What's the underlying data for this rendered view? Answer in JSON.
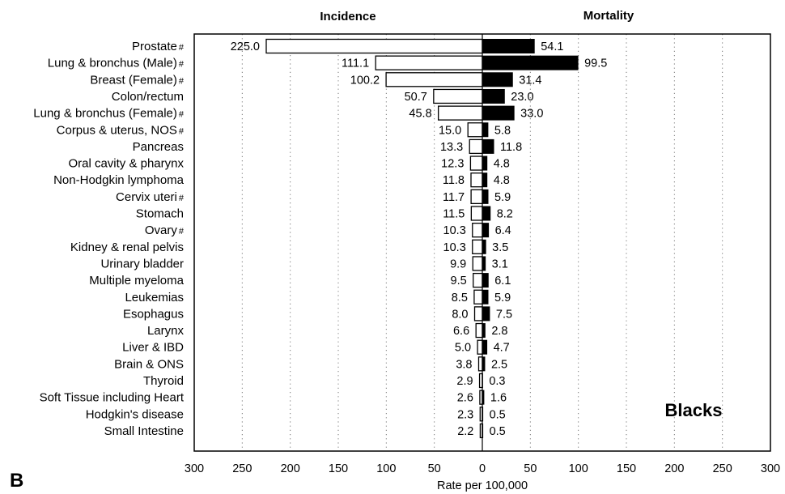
{
  "chart_data": {
    "type": "bar",
    "orientation": "horizontal-diverging",
    "headers": {
      "left": "Incidence",
      "right": "Mortality"
    },
    "panel_label": "Blacks",
    "figure_letter": "B",
    "xlabel": "Rate per 100,000",
    "xlim": [
      -300,
      300
    ],
    "tick_labels": [
      "300",
      "250",
      "200",
      "150",
      "100",
      "50",
      "0",
      "50",
      "100",
      "150",
      "200",
      "250",
      "300"
    ],
    "categories": [
      {
        "name": "Prostate",
        "hash": "#"
      },
      {
        "name": "Lung & bronchus (Male)",
        "hash": "#"
      },
      {
        "name": "Breast (Female)",
        "hash": "#"
      },
      {
        "name": "Colon/rectum",
        "hash": ""
      },
      {
        "name": "Lung & bronchus (Female)",
        "hash": "#"
      },
      {
        "name": "Corpus & uterus, NOS",
        "hash": "#"
      },
      {
        "name": "Pancreas",
        "hash": ""
      },
      {
        "name": "Oral cavity & pharynx",
        "hash": ""
      },
      {
        "name": "Non-Hodgkin lymphoma",
        "hash": ""
      },
      {
        "name": "Cervix uteri",
        "hash": "#"
      },
      {
        "name": "Stomach",
        "hash": ""
      },
      {
        "name": "Ovary",
        "hash": "#"
      },
      {
        "name": "Kidney & renal pelvis",
        "hash": ""
      },
      {
        "name": "Urinary bladder",
        "hash": ""
      },
      {
        "name": "Multiple myeloma",
        "hash": ""
      },
      {
        "name": "Leukemias",
        "hash": ""
      },
      {
        "name": "Esophagus",
        "hash": ""
      },
      {
        "name": "Larynx",
        "hash": ""
      },
      {
        "name": "Liver & IBD",
        "hash": ""
      },
      {
        "name": "Brain & ONS",
        "hash": ""
      },
      {
        "name": "Thyroid",
        "hash": ""
      },
      {
        "name": "Soft Tissue including Heart",
        "hash": ""
      },
      {
        "name": "Hodgkin's disease",
        "hash": ""
      },
      {
        "name": "Small Intestine",
        "hash": ""
      }
    ],
    "series": [
      {
        "name": "Incidence",
        "fill": "#ffffff",
        "values": [
          225.0,
          111.1,
          100.2,
          50.7,
          45.8,
          15.0,
          13.3,
          12.3,
          11.8,
          11.7,
          11.5,
          10.3,
          10.3,
          9.9,
          9.5,
          8.5,
          8.0,
          6.6,
          5.0,
          3.8,
          2.9,
          2.6,
          2.3,
          2.2
        ],
        "labels": [
          "225.0",
          "111.1",
          "100.2",
          "50.7",
          "45.8",
          "15.0",
          "13.3",
          "12.3",
          "11.8",
          "11.7",
          "11.5",
          "10.3",
          "10.3",
          "9.9",
          "9.5",
          "8.5",
          "8.0",
          "6.6",
          "5.0",
          "3.8",
          "2.9",
          "2.6",
          "2.3",
          "2.2"
        ]
      },
      {
        "name": "Mortality",
        "fill": "#000000",
        "values": [
          54.1,
          99.5,
          31.4,
          23.0,
          33.0,
          5.8,
          11.8,
          4.8,
          4.8,
          5.9,
          8.2,
          6.4,
          3.5,
          3.1,
          6.1,
          5.9,
          7.5,
          2.8,
          4.7,
          2.5,
          0.3,
          1.6,
          0.5,
          0.5
        ],
        "labels": [
          "54.1",
          "99.5",
          "31.4",
          "23.0",
          "33.0",
          "5.8",
          "11.8",
          "4.8",
          "4.8",
          "5.9",
          "8.2",
          "6.4",
          "3.5",
          "3.1",
          "6.1",
          "5.9",
          "7.5",
          "2.8",
          "4.7",
          "2.5",
          "0.3",
          "1.6",
          "0.5",
          "0.5"
        ]
      }
    ],
    "grid": "vertical-dotted",
    "legend": "none"
  }
}
